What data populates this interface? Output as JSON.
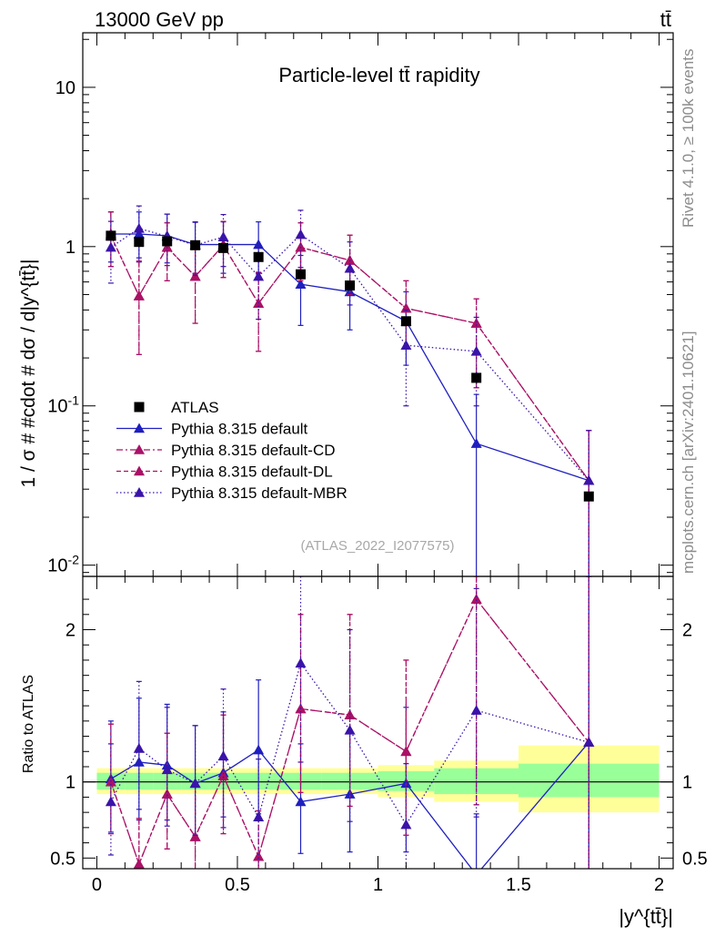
{
  "header": {
    "energy": "13000 GeV pp",
    "process": "tt̄"
  },
  "side_labels": {
    "rivet": "Rivet 4.1.0, ≥ 100k events",
    "site": "mcplots.cern.ch [arXiv:2401.10621]"
  },
  "chart_data": [
    {
      "type": "scatter",
      "panel": "main",
      "title": "Particle-level tt̄ rapidity",
      "ylabel": "1 / σ # #cdot # dσ / d|y^{tt̄}|",
      "xlabel": "",
      "yscale": "log",
      "ylim": [
        0.0085,
        22
      ],
      "xlim": [
        -0.05,
        2.05
      ],
      "yticks": [
        {
          "value": 10,
          "label": "10"
        },
        {
          "value": 1,
          "label": "1"
        },
        {
          "value": 0.1,
          "label": "10^-1"
        },
        {
          "value": 0.01,
          "label": "10^-2"
        }
      ],
      "watermark": "(ATLAS_2022_I2077575)",
      "bin_edges": [
        0,
        0.1,
        0.2,
        0.3,
        0.4,
        0.5,
        0.65,
        0.8,
        1.0,
        1.2,
        1.5,
        2.0
      ],
      "x": [
        0.05,
        0.15,
        0.25,
        0.35,
        0.45,
        0.575,
        0.725,
        0.9,
        1.1,
        1.35,
        1.75
      ],
      "series": [
        {
          "name": "ATLAS",
          "style": "marker",
          "color": "#000000",
          "values": [
            1.17,
            1.07,
            1.08,
            1.02,
            0.98,
            0.86,
            0.67,
            0.57,
            0.34,
            0.15,
            0.027
          ]
        },
        {
          "name": "Pythia 8.315 default",
          "style": "solid",
          "color": "#1f1fbf",
          "values": [
            1.2,
            1.2,
            1.17,
            1.03,
            1.03,
            1.03,
            0.58,
            0.52,
            0.34,
            0.058,
            0.034
          ],
          "err_lo": [
            0.4,
            0.4,
            0.38,
            0.35,
            0.35,
            0.35,
            0.26,
            0.22,
            0.16,
            0.056,
            0.033
          ],
          "err_hi": [
            0.45,
            0.45,
            0.43,
            0.4,
            0.4,
            0.4,
            0.3,
            0.26,
            0.18,
            0.06,
            0.036
          ]
        },
        {
          "name": "Pythia 8.315 default-CD",
          "style": "dashdot",
          "color": "#aa1166",
          "values": [
            1.17,
            0.49,
            0.99,
            0.65,
            1.02,
            0.44,
            0.99,
            0.82,
            0.41,
            0.33,
            0.034
          ],
          "err_lo": [
            0.42,
            0.28,
            0.38,
            0.32,
            0.38,
            0.22,
            0.38,
            0.32,
            0.18,
            0.2,
            0.033
          ],
          "err_hi": [
            0.48,
            0.32,
            0.42,
            0.36,
            0.42,
            0.25,
            0.42,
            0.36,
            0.2,
            0.14,
            0.036
          ]
        },
        {
          "name": "Pythia 8.315 default-DL",
          "style": "dashed",
          "color": "#aa1166",
          "values": [
            1.17,
            0.49,
            0.99,
            0.65,
            1.02,
            0.44,
            0.99,
            0.82,
            0.41,
            0.33,
            0.034
          ],
          "err_lo": [
            0.42,
            0.28,
            0.38,
            0.32,
            0.38,
            0.22,
            0.38,
            0.32,
            0.18,
            0.2,
            0.033
          ],
          "err_hi": [
            0.48,
            0.32,
            0.42,
            0.36,
            0.42,
            0.25,
            0.42,
            0.36,
            0.2,
            0.14,
            0.036
          ]
        },
        {
          "name": "Pythia 8.315 default-MBR",
          "style": "dotted",
          "color": "#3a13aa",
          "values": [
            0.99,
            1.3,
            1.16,
            1.02,
            1.15,
            0.65,
            1.19,
            0.73,
            0.24,
            0.22,
            0.034
          ],
          "err_lo": [
            0.4,
            0.45,
            0.4,
            0.36,
            0.4,
            0.3,
            0.45,
            0.3,
            0.14,
            0.12,
            0.033
          ],
          "err_hi": [
            0.45,
            0.5,
            0.44,
            0.4,
            0.44,
            0.34,
            0.5,
            0.34,
            0.16,
            0.14,
            0.036
          ]
        }
      ]
    },
    {
      "type": "scatter",
      "panel": "ratio",
      "ylabel": "Ratio to ATLAS",
      "xlabel": "|y^{tt̄}|",
      "ylim": [
        0.43,
        2.35
      ],
      "xlim": [
        -0.05,
        2.05
      ],
      "yticks": [
        {
          "value": 2,
          "label": "2"
        },
        {
          "value": 1,
          "label": "1"
        },
        {
          "value": 0.5,
          "label": "0.5"
        }
      ],
      "xticks": [
        {
          "value": 0,
          "label": "0"
        },
        {
          "value": 0.5,
          "label": "0.5"
        },
        {
          "value": 1,
          "label": "1"
        },
        {
          "value": 1.5,
          "label": "1.5"
        },
        {
          "value": 2,
          "label": "2"
        }
      ],
      "band_inner": [
        [
          0.95,
          1.06
        ],
        [
          0.95,
          1.06
        ],
        [
          0.95,
          1.06
        ],
        [
          0.95,
          1.06
        ],
        [
          0.95,
          1.06
        ],
        [
          0.95,
          1.06
        ],
        [
          0.95,
          1.06
        ],
        [
          0.95,
          1.06
        ],
        [
          0.94,
          1.07
        ],
        [
          0.92,
          1.09
        ],
        [
          0.9,
          1.12
        ]
      ],
      "band_outer": [
        [
          0.92,
          1.09
        ],
        [
          0.92,
          1.09
        ],
        [
          0.92,
          1.09
        ],
        [
          0.92,
          1.09
        ],
        [
          0.92,
          1.09
        ],
        [
          0.92,
          1.09
        ],
        [
          0.92,
          1.09
        ],
        [
          0.92,
          1.09
        ],
        [
          0.9,
          1.11
        ],
        [
          0.87,
          1.14
        ],
        [
          0.8,
          1.24
        ]
      ],
      "series": [
        {
          "name": "Pythia 8.315 default",
          "style": "solid",
          "color": "#1f1fbf",
          "values": [
            1.02,
            1.13,
            1.11,
            0.99,
            1.06,
            1.21,
            0.87,
            0.92,
            0.99,
            0.39,
            1.26
          ],
          "err_lo": [
            0.35,
            0.38,
            0.36,
            0.34,
            0.36,
            0.42,
            0.34,
            0.38,
            0.45,
            0.39,
            1.2
          ],
          "err_hi": [
            0.38,
            0.42,
            0.4,
            0.38,
            0.4,
            0.46,
            0.38,
            0.42,
            0.5,
            0.4,
            1.5
          ]
        },
        {
          "name": "Pythia 8.315 default-CD",
          "style": "dashdot",
          "color": "#aa1166",
          "values": [
            1.0,
            0.46,
            0.92,
            0.64,
            1.04,
            0.51,
            1.48,
            1.44,
            1.2,
            2.2,
            1.26
          ],
          "err_lo": [
            0.34,
            0.26,
            0.36,
            0.32,
            0.38,
            0.25,
            0.55,
            0.6,
            0.55,
            1.35,
            1.2
          ],
          "err_hi": [
            0.38,
            0.3,
            0.4,
            0.36,
            0.4,
            0.3,
            0.62,
            0.66,
            0.6,
            0.8,
            1.5
          ]
        },
        {
          "name": "Pythia 8.315 default-DL",
          "style": "dashed",
          "color": "#aa1166",
          "values": [
            1.0,
            0.46,
            0.92,
            0.64,
            1.04,
            0.51,
            1.48,
            1.44,
            1.2,
            2.2,
            1.26
          ],
          "err_lo": [
            0.34,
            0.26,
            0.36,
            0.32,
            0.38,
            0.25,
            0.55,
            0.6,
            0.55,
            1.35,
            1.2
          ],
          "err_hi": [
            0.38,
            0.3,
            0.4,
            0.36,
            0.4,
            0.3,
            0.62,
            0.66,
            0.6,
            0.8,
            1.5
          ]
        },
        {
          "name": "Pythia 8.315 default-MBR",
          "style": "dotted",
          "color": "#3a13aa",
          "values": [
            0.87,
            1.22,
            1.08,
            0.99,
            1.17,
            0.77,
            1.78,
            1.34,
            0.72,
            1.47,
            1.26
          ],
          "err_lo": [
            0.35,
            0.4,
            0.37,
            0.34,
            0.4,
            0.35,
            0.65,
            0.6,
            0.35,
            0.7,
            1.2
          ],
          "err_hi": [
            0.38,
            0.44,
            0.41,
            0.38,
            0.44,
            0.38,
            0.7,
            0.66,
            0.4,
            0.8,
            1.5
          ]
        }
      ]
    }
  ]
}
